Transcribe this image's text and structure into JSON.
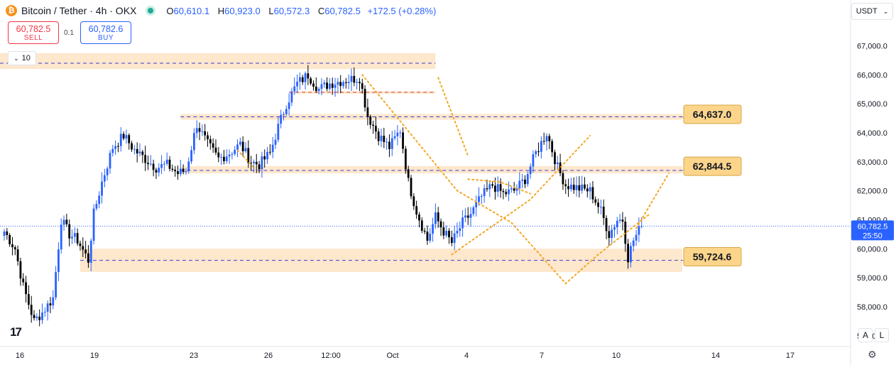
{
  "header": {
    "symbol": "Bitcoin / Tether · 4h · OKX",
    "open_label": "O",
    "open": "60,610.1",
    "high_label": "H",
    "high": "60,923.0",
    "low_label": "L",
    "low": "60,572.3",
    "close_label": "C",
    "close": "60,782.5",
    "change": "+172.5 (+0.28%)"
  },
  "trade": {
    "sell_price": "60,782.5",
    "sell_label": "SELL",
    "spread": "0.1",
    "buy_price": "60,782.6",
    "buy_label": "BUY"
  },
  "indicators_collapse": "10",
  "currency": "USDT",
  "scale_buttons": {
    "auto": "A",
    "log": "L"
  },
  "colors": {
    "up": "#2962ff",
    "down": "#000000",
    "zone": "#fde3c4",
    "level_line": "#3b3bd0",
    "projection": "#f5a623",
    "badge": "#fcd58b"
  },
  "chart_data": {
    "type": "candlestick",
    "y_axis": {
      "min": 56700,
      "max": 67600,
      "ticks": [
        57000,
        58000,
        59000,
        60000,
        61000,
        62000,
        63000,
        64000,
        65000,
        66000,
        67000
      ],
      "tick_labels": [
        "57,000.0",
        "58,000.0",
        "59,000.0",
        "60,000.0",
        "61,000.0",
        "62,000.0",
        "63,000.0",
        "64,000.0",
        "65,000.0",
        "66,000.0",
        "67,000.0"
      ]
    },
    "x_axis": {
      "labels": [
        "16",
        "19",
        "23",
        "26",
        "12:00",
        "Oct",
        "4",
        "7",
        "10",
        "14",
        "17"
      ]
    },
    "last_price": {
      "value": 60782.5,
      "label": "60,782.5",
      "countdown": "25:50"
    },
    "zones": [
      {
        "low": 66200,
        "high": 66750,
        "line": 66400,
        "end_bar": 159
      },
      {
        "low": 59200,
        "high": 60000,
        "line": 59600,
        "start_bar": 28,
        "end_bar": 250
      },
      {
        "low": 64450,
        "high": 64650,
        "line": 64550,
        "start_bar": 65,
        "end_bar": 250
      },
      {
        "low": 62600,
        "high": 62850,
        "line": 62700,
        "start_bar": 65,
        "end_bar": 250
      }
    ],
    "extra_lines": [
      {
        "value": 65400,
        "start_bar": 105,
        "end_bar": 159
      }
    ],
    "callouts": [
      {
        "label": "64,637.0",
        "value": 64637.0,
        "arrow_from": 64550
      },
      {
        "label": "62,844.5",
        "value": 62844.5,
        "arrow_from": 62700
      },
      {
        "label": "59,724.6",
        "value": 59724.6,
        "arrow_from": 59600
      }
    ],
    "projection_paths": [
      [
        [
          132,
          66000
        ],
        [
          167,
          62000
        ],
        [
          187,
          60900
        ],
        [
          207,
          58800
        ],
        [
          219,
          59800
        ],
        [
          238,
          61200
        ]
      ],
      [
        [
          160,
          65900
        ],
        [
          171,
          63200
        ]
      ],
      [
        [
          165,
          59800
        ],
        [
          194,
          61700
        ],
        [
          216,
          63900
        ]
      ],
      [
        [
          171,
          62400
        ],
        [
          183,
          62300
        ],
        [
          194,
          61900
        ]
      ],
      [
        [
          233,
          60700
        ],
        [
          245,
          62600
        ]
      ],
      [
        [
          86,
          63400
        ],
        [
          92,
          62800
        ]
      ]
    ],
    "anchors": [
      [
        0,
        60600
      ],
      [
        4,
        60000
      ],
      [
        7,
        58700
      ],
      [
        11,
        57500
      ],
      [
        14,
        57800
      ],
      [
        18,
        58300
      ],
      [
        21,
        61000
      ],
      [
        24,
        60500
      ],
      [
        27,
        60300
      ],
      [
        31,
        59600
      ],
      [
        33,
        61200
      ],
      [
        36,
        62300
      ],
      [
        40,
        63500
      ],
      [
        44,
        63900
      ],
      [
        48,
        63400
      ],
      [
        52,
        63100
      ],
      [
        56,
        62800
      ],
      [
        60,
        62900
      ],
      [
        64,
        62600
      ],
      [
        67,
        62700
      ],
      [
        71,
        64300
      ],
      [
        75,
        63600
      ],
      [
        79,
        63100
      ],
      [
        83,
        63300
      ],
      [
        87,
        63600
      ],
      [
        91,
        63000
      ],
      [
        94,
        62900
      ],
      [
        98,
        63300
      ],
      [
        101,
        64200
      ],
      [
        104,
        65000
      ],
      [
        108,
        65700
      ],
      [
        112,
        66000
      ],
      [
        116,
        65500
      ],
      [
        120,
        65700
      ],
      [
        125,
        65800
      ],
      [
        131,
        65900
      ],
      [
        134,
        64600
      ],
      [
        138,
        63900
      ],
      [
        142,
        63500
      ],
      [
        146,
        64100
      ],
      [
        149,
        62300
      ],
      [
        152,
        61300
      ],
      [
        156,
        60300
      ],
      [
        159,
        61100
      ],
      [
        162,
        60600
      ],
      [
        165,
        60200
      ],
      [
        169,
        60900
      ],
      [
        172,
        61200
      ],
      [
        176,
        61800
      ],
      [
        180,
        62200
      ],
      [
        184,
        61900
      ],
      [
        188,
        62000
      ],
      [
        192,
        62400
      ],
      [
        196,
        63300
      ],
      [
        200,
        64000
      ],
      [
        204,
        62800
      ],
      [
        207,
        62200
      ],
      [
        211,
        62100
      ],
      [
        216,
        62000
      ],
      [
        220,
        61300
      ],
      [
        223,
        60500
      ],
      [
        226,
        61000
      ],
      [
        228,
        61000
      ],
      [
        230,
        59700
      ],
      [
        232,
        60300
      ],
      [
        235,
        60782.5
      ]
    ]
  }
}
